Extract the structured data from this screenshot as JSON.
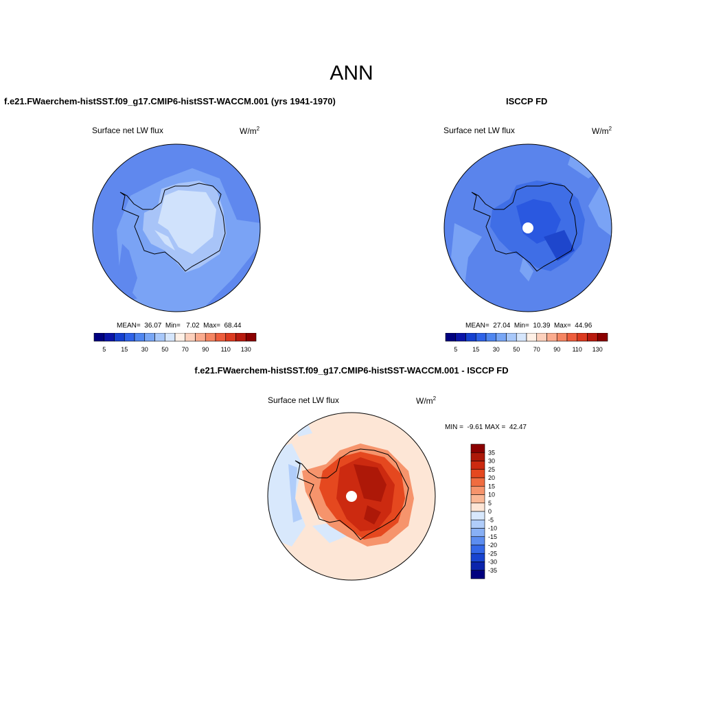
{
  "title": "ANN",
  "panels": {
    "model": {
      "title": "f.e21.FWaerchem-histSST.f09_g17.CMIP6-histSST-WACCM.001 (yrs 1941-1970)",
      "variable": "Surface net LW flux",
      "units": "W/m",
      "units_exp": "2",
      "stats": "MEAN=  36.07  Min=   7.02  Max=  68.44"
    },
    "obs": {
      "title": "ISCCP FD",
      "variable": "Surface net LW flux",
      "units": "W/m",
      "units_exp": "2",
      "stats": "MEAN=  27.04  Min=  10.39  Max=  44.96"
    },
    "diff": {
      "title": "f.e21.FWaerchem-histSST.f09_g17.CMIP6-histSST-WACCM.001 - ISCCP FD",
      "variable": "Surface net LW flux",
      "units": "W/m",
      "units_exp": "2",
      "minmax": "MIN =  -9.61 MAX =  42.47"
    }
  },
  "colorbars": {
    "abs": {
      "colors": [
        "#00007f",
        "#0a14a8",
        "#1540d0",
        "#2e62e8",
        "#4f86f0",
        "#78a6f5",
        "#a8c8fa",
        "#d6e6fc",
        "#fff0e6",
        "#fdd0bc",
        "#fbab8e",
        "#f58562",
        "#ee5d3c",
        "#dc3a1f",
        "#b91a0e",
        "#8b0000"
      ],
      "labels": [
        "5",
        "15",
        "30",
        "50",
        "70",
        "90",
        "110",
        "130"
      ]
    },
    "diff": {
      "colors": [
        "#8b0000",
        "#ad1808",
        "#cc2a10",
        "#e5481f",
        "#f06c40",
        "#f6946c",
        "#fab896",
        "#fde6d6",
        "#d8e8fc",
        "#b0cdfa",
        "#88b0f5",
        "#5c8df0",
        "#3468e8",
        "#1844d0",
        "#0b24ac",
        "#00007f"
      ],
      "labels": [
        "35",
        "30",
        "25",
        "20",
        "15",
        "10",
        "5",
        "0",
        "-5",
        "-10",
        "-15",
        "-20",
        "-25",
        "-30",
        "-35"
      ]
    }
  }
}
